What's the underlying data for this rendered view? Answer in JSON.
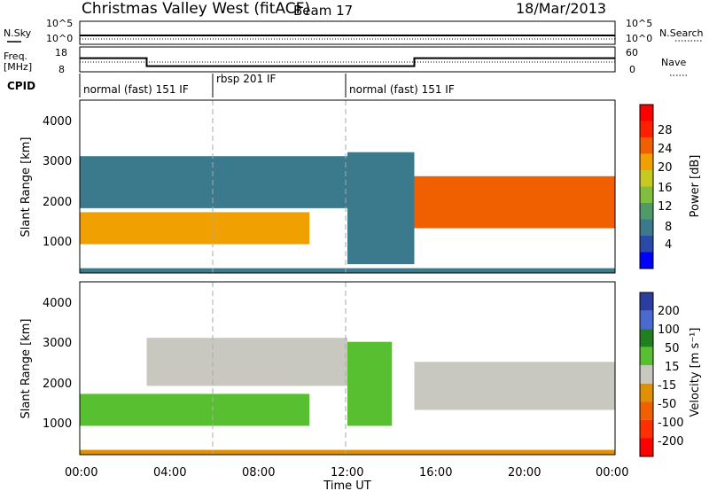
{
  "header": {
    "station": "Christmas Valley West (fitACF)",
    "beam": "Beam 17",
    "date": "18/Mar/2013"
  },
  "colors": {
    "axis": "#000000",
    "power_scale": [
      "#0000ff",
      "#2a4aa8",
      "#3b7a8c",
      "#4f9a6a",
      "#7fbf3f",
      "#c8c820",
      "#f0a000",
      "#f06000",
      "#ff2000",
      "#ff0000"
    ],
    "velocity_scale": [
      "#2a3ea0",
      "#4a6ad0",
      "#208020",
      "#58c030",
      "#c8c8c0",
      "#e09000",
      "#f06000",
      "#ff3000",
      "#ff0000"
    ]
  },
  "noise_panel": {
    "left_label": "N.Sky",
    "right_label": "N.Search",
    "left_ticks": [
      "10^5",
      "10^0"
    ],
    "right_ticks": [
      "10^5",
      "10^0"
    ]
  },
  "freq_panel": {
    "left_label_1": "Freq.",
    "left_label_2": "[MHz]",
    "right_label": "Nave",
    "left_ticks": [
      "18",
      "8"
    ],
    "right_ticks": [
      "60",
      "0"
    ]
  },
  "cpid": {
    "label": "CPID",
    "segments": [
      "normal (fast) 151 IF",
      "rbsp 201 IF",
      "normal (fast) 151 IF"
    ]
  },
  "power_panel": {
    "ylabel": "Slant Range [km]",
    "yticks": [
      "4000",
      "3000",
      "2000",
      "1000"
    ],
    "colorbar_label": "Power [dB]",
    "colorbar_ticks": [
      "28",
      "24",
      "20",
      "16",
      "12",
      "8",
      "4"
    ]
  },
  "velocity_panel": {
    "ylabel": "Slant Range [km]",
    "yticks": [
      "4000",
      "3000",
      "2000",
      "1000"
    ],
    "colorbar_label": "Velocity [m s⁻¹]",
    "colorbar_ticks": [
      "200",
      "100",
      "50",
      "15",
      "-15",
      "-50",
      "-100",
      "-200"
    ]
  },
  "xaxis": {
    "label": "Time UT",
    "ticks": [
      "00:00",
      "04:00",
      "08:00",
      "12:00",
      "16:00",
      "20:00",
      "00:00"
    ]
  },
  "chart_data": [
    {
      "type": "line",
      "title": "Freq. [MHz]",
      "x": [
        "00:00",
        "03:00",
        "15:00",
        "24:00"
      ],
      "series": [
        {
          "name": "Freq.",
          "values": [
            13.5,
            10.3,
            13.5,
            13.5
          ]
        }
      ],
      "ylim": [
        8,
        18
      ]
    },
    {
      "type": "heatmap",
      "title": "Power [dB]",
      "ylabel": "Slant Range [km]",
      "xlabel": "Time UT",
      "xlim": [
        "00:00",
        "24:00"
      ],
      "ylim": [
        180,
        4500
      ],
      "zrange": [
        0,
        30
      ],
      "bands": [
        {
          "t_start": 0.0,
          "t_end": 10.3,
          "range_min": 900,
          "range_max": 1700,
          "power": 20
        },
        {
          "t_start": 0.0,
          "t_end": 12.0,
          "range_min": 1800,
          "range_max": 3100,
          "power": 6
        },
        {
          "t_start": 12.0,
          "t_end": 15.0,
          "range_min": 400,
          "range_max": 3200,
          "power": 8
        },
        {
          "t_start": 15.0,
          "t_end": 24.0,
          "range_min": 1300,
          "range_max": 2600,
          "power": 22
        },
        {
          "t_start": 0.0,
          "t_end": 24.0,
          "range_min": 180,
          "range_max": 300,
          "power": 6
        }
      ]
    },
    {
      "type": "heatmap",
      "title": "Velocity [m s⁻¹]",
      "ylabel": "Slant Range [km]",
      "xlabel": "Time UT",
      "xlim": [
        "00:00",
        "24:00"
      ],
      "ylim": [
        180,
        4500
      ],
      "zrange": [
        -200,
        200
      ],
      "bands": [
        {
          "t_start": 0.0,
          "t_end": 10.3,
          "range_min": 900,
          "range_max": 1700,
          "velocity": 30
        },
        {
          "t_start": 3.0,
          "t_end": 12.0,
          "range_min": 1900,
          "range_max": 3100,
          "velocity": 0
        },
        {
          "t_start": 12.0,
          "t_end": 14.0,
          "range_min": 900,
          "range_max": 3000,
          "velocity": 40
        },
        {
          "t_start": 15.0,
          "t_end": 24.0,
          "range_min": 1300,
          "range_max": 2500,
          "velocity": 0
        },
        {
          "t_start": 0.0,
          "t_end": 24.0,
          "range_min": 180,
          "range_max": 300,
          "velocity": -60
        }
      ]
    }
  ]
}
